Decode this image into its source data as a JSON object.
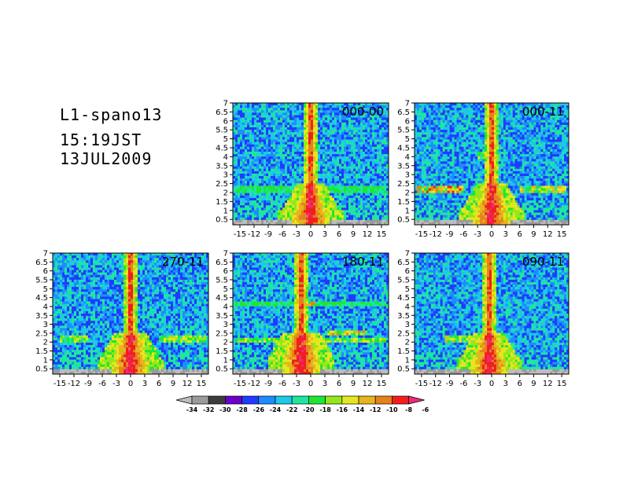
{
  "header": {
    "line1": "L1-spano13",
    "line2": "15:19JST",
    "line3": "13JUL2009"
  },
  "chart_data": [
    {
      "type": "heatmap",
      "title": "000-00",
      "x_ticks": [
        "-15",
        "-12",
        "-9",
        "-6",
        "-3",
        "0",
        "3",
        "6",
        "9",
        "12",
        "15"
      ],
      "y_ticks": [
        "0.5",
        "1",
        "1.5",
        "2",
        "2.5",
        "3",
        "3.5",
        "4",
        "4.5",
        "5",
        "5.5",
        "6",
        "6.5",
        "7"
      ],
      "xlim": [
        -16.5,
        16.5
      ],
      "ylim": [
        0.2,
        7
      ]
    },
    {
      "type": "heatmap",
      "title": "000-11",
      "x_ticks": [
        "-15",
        "-12",
        "-9",
        "-6",
        "-3",
        "0",
        "3",
        "6",
        "9",
        "12",
        "15"
      ],
      "y_ticks": [
        "0.5",
        "1",
        "1.5",
        "2",
        "2.5",
        "3",
        "3.5",
        "4",
        "4.5",
        "5",
        "5.5",
        "6",
        "6.5",
        "7"
      ],
      "xlim": [
        -16.5,
        16.5
      ],
      "ylim": [
        0.2,
        7
      ]
    },
    {
      "type": "heatmap",
      "title": "270-11",
      "x_ticks": [
        "-15",
        "-12",
        "-9",
        "-6",
        "-3",
        "0",
        "3",
        "6",
        "9",
        "12",
        "15"
      ],
      "y_ticks": [
        "0.5",
        "1",
        "1.5",
        "2",
        "2.5",
        "3",
        "3.5",
        "4",
        "4.5",
        "5",
        "5.5",
        "6",
        "6.5",
        "7"
      ],
      "xlim": [
        -16.5,
        16.5
      ],
      "ylim": [
        0.2,
        7
      ]
    },
    {
      "type": "heatmap",
      "title": "180-11",
      "x_ticks": [
        "-15",
        "-12",
        "-9",
        "-6",
        "-3",
        "0",
        "3",
        "6",
        "9",
        "12",
        "15"
      ],
      "y_ticks": [
        "0.5",
        "1",
        "1.5",
        "2",
        "2.5",
        "3",
        "3.5",
        "4",
        "4.5",
        "5",
        "5.5",
        "6",
        "6.5",
        "7"
      ],
      "xlim": [
        -16.5,
        16.5
      ],
      "ylim": [
        0.2,
        7
      ]
    },
    {
      "type": "heatmap",
      "title": "090-11",
      "x_ticks": [
        "-15",
        "-12",
        "-9",
        "-6",
        "-3",
        "0",
        "3",
        "6",
        "9",
        "12",
        "15"
      ],
      "y_ticks": [
        "0.5",
        "1",
        "1.5",
        "2",
        "2.5",
        "3",
        "3.5",
        "4",
        "4.5",
        "5",
        "5.5",
        "6",
        "6.5",
        "7"
      ],
      "xlim": [
        -16.5,
        16.5
      ],
      "ylim": [
        0.2,
        7
      ]
    }
  ],
  "colorbar": {
    "labels": [
      "-34",
      "-32",
      "-30",
      "-28",
      "-26",
      "-24",
      "-22",
      "-20",
      "-18",
      "-16",
      "-14",
      "-12",
      "-10",
      "-8",
      "-6"
    ],
    "colors": [
      "#bdbdbd",
      "#9a9a9a",
      "#3c3c3c",
      "#6a00c8",
      "#1e3cff",
      "#1e8cff",
      "#1ec8e6",
      "#1ee6a0",
      "#1ee632",
      "#96e61e",
      "#e6e61e",
      "#e6b41e",
      "#e6821e",
      "#f01e1e",
      "#f0287d"
    ]
  }
}
